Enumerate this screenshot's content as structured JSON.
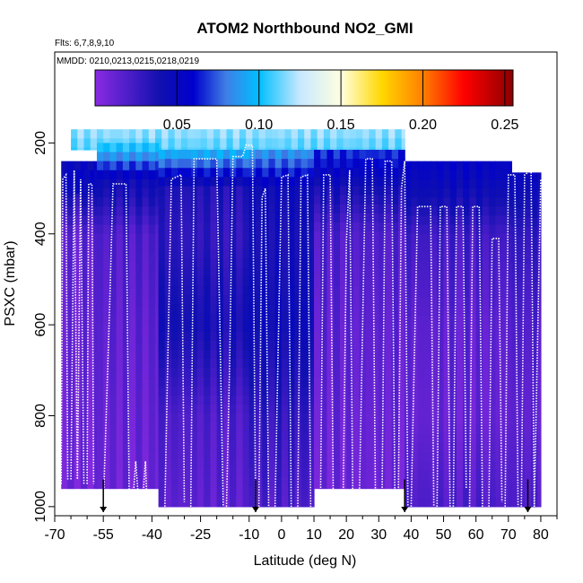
{
  "chart_data": {
    "type": "heatmap",
    "title": "ATOM2 Northbound NO2_GMI",
    "flights_note": "Flts: 6,7,8,9,10",
    "dates_note": "MMDD: 0210,0213,0215,0218,0219",
    "xlabel": "Latitude (deg N)",
    "ylabel": "PSXC (mbar)",
    "xlim": [
      -70,
      85
    ],
    "ylim": [
      1020,
      0
    ],
    "x_ticks": [
      -70,
      -55,
      -40,
      -25,
      -10,
      0,
      10,
      20,
      30,
      40,
      50,
      60,
      70,
      80
    ],
    "x_minor_ticks": [
      -65,
      -60,
      -50,
      -45,
      -35,
      -30,
      -20,
      -15,
      -5,
      5,
      15,
      25,
      35,
      45,
      55,
      65,
      75,
      85
    ],
    "y_ticks": [
      200,
      400,
      600,
      800,
      1000
    ],
    "colorbar": {
      "min": 0.0,
      "max": 0.255,
      "ticks": [
        0.05,
        0.1,
        0.15,
        0.2,
        0.25
      ],
      "tick_labels": [
        "0.05",
        "0.10",
        "0.15",
        "0.20",
        "0.25"
      ],
      "lines": [
        0.05,
        0.1,
        0.15,
        0.2,
        0.25
      ],
      "stops": [
        [
          0.0,
          "#8a2be2"
        ],
        [
          0.04,
          "#1010b0"
        ],
        [
          0.06,
          "#0000cd"
        ],
        [
          0.08,
          "#3f7fe6"
        ],
        [
          0.1,
          "#00bfff"
        ],
        [
          0.125,
          "#c8e8ff"
        ],
        [
          0.15,
          "#ffffe0"
        ],
        [
          0.175,
          "#ffd700"
        ],
        [
          0.2,
          "#ff7f00"
        ],
        [
          0.225,
          "#ff0000"
        ],
        [
          0.255,
          "#8b0000"
        ]
      ]
    },
    "curtain_segments": [
      {
        "lat": [
          -68,
          -57
        ],
        "p_top": 240,
        "p_bot": 960,
        "profile": [
          [
            240,
            0.05
          ],
          [
            300,
            0.04
          ],
          [
            400,
            0.015
          ],
          [
            600,
            0.012
          ],
          [
            800,
            0.01
          ],
          [
            960,
            0.008
          ]
        ]
      },
      {
        "lat": [
          -67,
          -58
        ],
        "p_top": 260,
        "p_bot": 310,
        "profile": [
          [
            260,
            0.055
          ],
          [
            310,
            0.045
          ]
        ]
      },
      {
        "lat": [
          -65,
          38
        ],
        "p_top": 170,
        "p_bot": 215,
        "profile": [
          [
            170,
            0.12
          ],
          [
            215,
            0.11
          ]
        ]
      },
      {
        "lat": [
          -57,
          -38
        ],
        "p_top": 200,
        "p_bot": 960,
        "profile": [
          [
            200,
            0.11
          ],
          [
            280,
            0.045
          ],
          [
            400,
            0.02
          ],
          [
            600,
            0.015
          ],
          [
            800,
            0.012
          ],
          [
            960,
            0.01
          ]
        ]
      },
      {
        "lat": [
          -38,
          -10
        ],
        "p_top": 215,
        "p_bot": 1000,
        "profile": [
          [
            215,
            0.1
          ],
          [
            300,
            0.035
          ],
          [
            400,
            0.03
          ],
          [
            600,
            0.04
          ],
          [
            800,
            0.02
          ],
          [
            1000,
            0.015
          ]
        ]
      },
      {
        "lat": [
          -10,
          10
        ],
        "p_top": 215,
        "p_bot": 1000,
        "profile": [
          [
            215,
            0.09
          ],
          [
            300,
            0.045
          ],
          [
            400,
            0.04
          ],
          [
            600,
            0.045
          ],
          [
            800,
            0.03
          ],
          [
            1000,
            0.02
          ]
        ]
      },
      {
        "lat": [
          10,
          38
        ],
        "p_top": 215,
        "p_bot": 960,
        "profile": [
          [
            215,
            0.07
          ],
          [
            300,
            0.04
          ],
          [
            400,
            0.02
          ],
          [
            600,
            0.015
          ],
          [
            800,
            0.012
          ],
          [
            960,
            0.01
          ]
        ]
      },
      {
        "lat": [
          38,
          71
        ],
        "p_top": 240,
        "p_bot": 1000,
        "profile": [
          [
            240,
            0.055
          ],
          [
            300,
            0.045
          ],
          [
            400,
            0.025
          ],
          [
            600,
            0.015
          ],
          [
            800,
            0.012
          ],
          [
            1000,
            0.02
          ]
        ]
      },
      {
        "lat": [
          71,
          80
        ],
        "p_top": 265,
        "p_bot": 1000,
        "profile": [
          [
            265,
            0.05
          ],
          [
            400,
            0.03
          ],
          [
            600,
            0.02
          ],
          [
            800,
            0.015
          ],
          [
            1000,
            0.02
          ]
        ]
      }
    ],
    "flight_tracks": [
      [
        [
          -68,
          950
        ],
        [
          -67.5,
          280
        ],
        [
          -66.5,
          270
        ],
        [
          -66,
          940
        ]
      ],
      [
        [
          -65,
          940
        ],
        [
          -64,
          260
        ],
        [
          -63,
          940
        ],
        [
          -62,
          280
        ],
        [
          -61,
          950
        ]
      ],
      [
        [
          -60,
          950
        ],
        [
          -59.5,
          290
        ],
        [
          -58.5,
          290
        ],
        [
          -58,
          950
        ]
      ],
      [
        [
          -55,
          1000
        ],
        [
          -53,
          550
        ],
        [
          -52,
          290
        ],
        [
          -48,
          290
        ],
        [
          -47,
          990
        ]
      ],
      [
        [
          -46,
          1000
        ],
        [
          -45,
          900
        ],
        [
          -44,
          1000
        ]
      ],
      [
        [
          -43,
          1000
        ],
        [
          -42,
          900
        ],
        [
          -41.5,
          1000
        ]
      ],
      [
        [
          -36,
          1000
        ],
        [
          -34,
          280
        ],
        [
          -31,
          270
        ],
        [
          -30,
          990
        ]
      ],
      [
        [
          -28,
          1000
        ],
        [
          -27,
          235
        ],
        [
          -20,
          235
        ],
        [
          -18,
          1000
        ]
      ],
      [
        [
          -17,
          1000
        ],
        [
          -16,
          680
        ],
        [
          -15,
          230
        ],
        [
          -12,
          230
        ],
        [
          -11,
          205
        ],
        [
          -9,
          205
        ],
        [
          -8,
          1000
        ]
      ],
      [
        [
          -7,
          1000
        ],
        [
          -6,
          320
        ],
        [
          -5,
          300
        ],
        [
          -4,
          1000
        ]
      ],
      [
        [
          -2,
          1000
        ],
        [
          0,
          275
        ],
        [
          2,
          270
        ],
        [
          3,
          1000
        ]
      ],
      [
        [
          5,
          1000
        ],
        [
          6,
          275
        ],
        [
          8,
          270
        ],
        [
          9,
          1000
        ]
      ],
      [
        [
          12,
          1000
        ],
        [
          13,
          270
        ],
        [
          15,
          270
        ],
        [
          16,
          1000
        ]
      ],
      [
        [
          19,
          1000
        ],
        [
          20,
          420
        ],
        [
          21,
          260
        ],
        [
          22,
          1000
        ]
      ],
      [
        [
          24,
          990
        ],
        [
          26,
          235
        ],
        [
          28,
          235
        ],
        [
          29,
          1000
        ]
      ],
      [
        [
          31,
          1000
        ],
        [
          32,
          240
        ],
        [
          34,
          240
        ],
        [
          35,
          1000
        ]
      ],
      [
        [
          36,
          1000
        ],
        [
          37,
          300
        ],
        [
          38,
          240
        ],
        [
          39,
          1000
        ]
      ],
      [
        [
          40,
          1000
        ],
        [
          42,
          340
        ],
        [
          46,
          340
        ],
        [
          47,
          1000
        ]
      ],
      [
        [
          48,
          1000
        ],
        [
          49,
          340
        ],
        [
          51,
          340
        ],
        [
          52,
          1000
        ]
      ],
      [
        [
          53,
          1000
        ],
        [
          54,
          340
        ],
        [
          56,
          340
        ],
        [
          57,
          960
        ]
      ],
      [
        [
          58,
          1000
        ],
        [
          59,
          340
        ],
        [
          61,
          340
        ],
        [
          62,
          1000
        ]
      ],
      [
        [
          64,
          1000
        ],
        [
          65,
          410
        ],
        [
          67,
          410
        ],
        [
          68,
          990
        ]
      ],
      [
        [
          69,
          1000
        ],
        [
          70,
          270
        ],
        [
          72,
          270
        ],
        [
          73,
          1000
        ]
      ],
      [
        [
          74,
          1000
        ],
        [
          75,
          270
        ],
        [
          77,
          260
        ],
        [
          78,
          1000
        ]
      ],
      [
        [
          78,
          1000
        ],
        [
          80,
          280
        ],
        [
          82,
          290
        ]
      ]
    ],
    "markers_lat": [
      -55,
      -8,
      38,
      76
    ]
  }
}
